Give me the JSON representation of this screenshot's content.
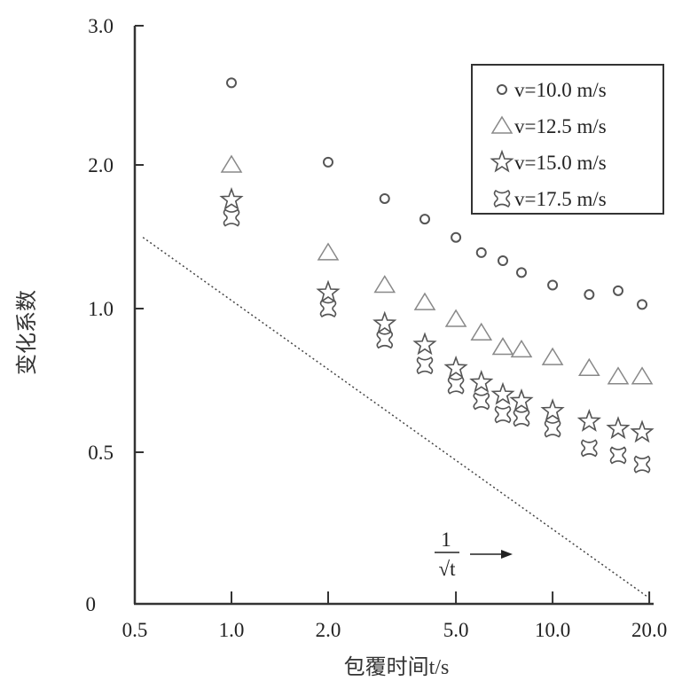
{
  "chart_data": {
    "type": "scatter",
    "title": "",
    "xlabel": "包覆时间t/s",
    "ylabel": "变化系数",
    "x_scale": "log",
    "y_scale": "log (0.5–2), with 0 and 3.0 end ticks",
    "xlim": [
      0.5,
      20.0
    ],
    "ylim": [
      0,
      3.0
    ],
    "x_ticks": [
      "0.5",
      "1.0",
      "2.0",
      "5.0",
      "10.0",
      "20.0"
    ],
    "x_tick_values": [
      0.5,
      1,
      2,
      5,
      10,
      20
    ],
    "y_ticks": [
      "0",
      "0.5",
      "1.0",
      "2.0",
      "3.0"
    ],
    "y_tick_values": [
      0,
      0.5,
      1,
      2,
      3
    ],
    "grid": false,
    "legend_position": "top-right",
    "x": [
      1,
      2,
      3,
      4,
      5,
      6,
      7,
      8,
      10,
      13,
      16,
      19
    ],
    "series": [
      {
        "name": "v=10.0 m/s",
        "marker": "circle",
        "values": [
          2.59,
          2.02,
          1.7,
          1.54,
          1.41,
          1.31,
          1.26,
          1.19,
          1.12,
          1.07,
          1.09,
          1.02
        ]
      },
      {
        "name": "v=12.5 m/s",
        "marker": "triangle",
        "values": [
          2.0,
          1.31,
          1.12,
          1.03,
          0.95,
          0.89,
          0.83,
          0.82,
          0.79,
          0.75,
          0.72,
          0.72
        ]
      },
      {
        "name": "v=15.0 m/s",
        "marker": "star",
        "values": [
          1.69,
          1.08,
          0.93,
          0.84,
          0.75,
          0.7,
          0.66,
          0.64,
          0.61,
          0.58,
          0.56,
          0.55
        ]
      },
      {
        "name": "v=17.5 m/s",
        "marker": "cross",
        "values": [
          1.55,
          1.0,
          0.86,
          0.76,
          0.69,
          0.64,
          0.6,
          0.59,
          0.56,
          0.51,
          0.49,
          0.46
        ]
      }
    ],
    "reference_line": {
      "label_numerator": "1",
      "label_denominator": "√t",
      "from": [
        0.53,
        1.41
      ],
      "to": [
        20,
        0
      ],
      "style": "dotted"
    }
  }
}
